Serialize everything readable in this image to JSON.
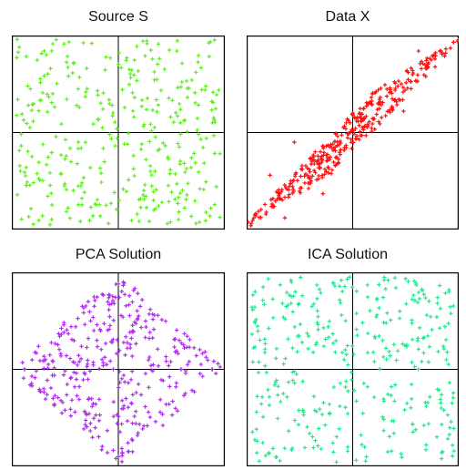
{
  "chart_data": [
    {
      "id": "source",
      "type": "scatter",
      "title": "Source S",
      "xlabel": "",
      "ylabel": "",
      "xlim": [
        -1,
        1
      ],
      "ylim": [
        -1,
        1
      ],
      "grid": false,
      "axes_through_origin": true,
      "series": [
        {
          "color": "#5ef01a",
          "distribution": "uniform square",
          "sample_points": [
            [
              -0.93,
              0.88
            ],
            [
              -0.71,
              0.41
            ],
            [
              -0.25,
              0.92
            ],
            [
              0.08,
              0.77
            ],
            [
              0.55,
              0.84
            ],
            [
              0.89,
              0.31
            ],
            [
              -0.88,
              -0.41
            ],
            [
              -0.35,
              -0.55
            ],
            [
              0.41,
              -0.72
            ],
            [
              0.82,
              -0.91
            ],
            [
              -0.15,
              0.05
            ],
            [
              0.22,
              -0.12
            ]
          ]
        }
      ]
    },
    {
      "id": "mixed",
      "type": "scatter",
      "title": "Data X",
      "xlabel": "",
      "ylabel": "",
      "xlim": [
        -1,
        1
      ],
      "ylim": [
        -1,
        1
      ],
      "grid": false,
      "axes_through_origin": true,
      "series": [
        {
          "color": "#ff1010",
          "distribution": "linearly mixed uniform parallelogram",
          "sample_points": [
            [
              -0.96,
              -0.96
            ],
            [
              -0.64,
              -0.88
            ],
            [
              -0.78,
              -0.44
            ],
            [
              -0.32,
              -0.33
            ],
            [
              0.01,
              0.02
            ],
            [
              0.35,
              0.41
            ],
            [
              0.82,
              0.84
            ],
            [
              0.95,
              0.93
            ],
            [
              0.62,
              0.84
            ],
            [
              0.48,
              0.22
            ],
            [
              -0.28,
              -0.63
            ],
            [
              -0.55,
              -0.1
            ]
          ]
        }
      ]
    },
    {
      "id": "pca",
      "type": "scatter",
      "title": "PCA Solution",
      "xlabel": "",
      "ylabel": "",
      "xlim": [
        -1,
        1
      ],
      "ylim": [
        -1,
        1
      ],
      "grid": false,
      "axes_through_origin": true,
      "series": [
        {
          "color": "#b22cf2",
          "distribution": "rotated uniform diamond",
          "sample_points": [
            [
              -0.88,
              0.0
            ],
            [
              -0.55,
              0.34
            ],
            [
              -0.22,
              0.71
            ],
            [
              0.0,
              0.88
            ],
            [
              0.29,
              0.57
            ],
            [
              0.62,
              0.22
            ],
            [
              0.88,
              0.0
            ],
            [
              0.51,
              -0.33
            ],
            [
              0.18,
              -0.68
            ],
            [
              0.0,
              -0.9
            ],
            [
              -0.31,
              -0.57
            ],
            [
              -0.7,
              -0.2
            ]
          ]
        }
      ]
    },
    {
      "id": "ica",
      "type": "scatter",
      "title": "ICA Solution",
      "xlabel": "",
      "ylabel": "",
      "xlim": [
        -1,
        1
      ],
      "ylim": [
        -1,
        1
      ],
      "grid": false,
      "axes_through_origin": true,
      "series": [
        {
          "color": "#24e88e",
          "distribution": "uniform square",
          "sample_points": [
            [
              -0.92,
              0.8
            ],
            [
              -0.61,
              0.66
            ],
            [
              -0.18,
              0.89
            ],
            [
              0.23,
              0.72
            ],
            [
              0.58,
              0.91
            ],
            [
              0.87,
              0.44
            ],
            [
              -0.9,
              -0.74
            ],
            [
              -0.47,
              -0.42
            ],
            [
              0.37,
              -0.53
            ],
            [
              0.84,
              -0.86
            ],
            [
              -0.08,
              0.1
            ],
            [
              0.14,
              -0.18
            ]
          ]
        }
      ]
    }
  ]
}
